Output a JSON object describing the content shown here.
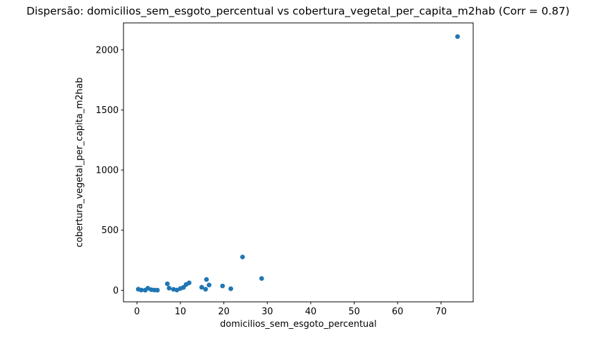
{
  "chart_data": {
    "type": "scatter",
    "title": "Dispersão: domicilios_sem_esgoto_percentual vs cobertura_vegetal_per_capita_m2hab (Corr = 0.87)",
    "correlation": 0.87,
    "xlabel": "domicilios_sem_esgoto_percentual",
    "ylabel": "cobertura_vegetal_per_capita_m2hab",
    "xlim": [
      -3.1,
      77.4
    ],
    "ylim": [
      -96,
      2224
    ],
    "x_ticks": [
      0,
      10,
      20,
      30,
      40,
      50,
      60,
      70
    ],
    "y_ticks": [
      0,
      500,
      1000,
      1500,
      2000
    ],
    "grid": false,
    "marker_color": "#1f77b4",
    "axis_color": "#000000",
    "points": [
      [
        0.3,
        9
      ],
      [
        1.0,
        2
      ],
      [
        1.9,
        1
      ],
      [
        2.5,
        17
      ],
      [
        3.3,
        5
      ],
      [
        4.0,
        2
      ],
      [
        4.7,
        1
      ],
      [
        7.0,
        54
      ],
      [
        7.4,
        18
      ],
      [
        8.4,
        8
      ],
      [
        9.2,
        2
      ],
      [
        10.0,
        15
      ],
      [
        10.7,
        24
      ],
      [
        11.3,
        48
      ],
      [
        12.0,
        62
      ],
      [
        14.9,
        25
      ],
      [
        15.8,
        9
      ],
      [
        16.0,
        90
      ],
      [
        16.6,
        44
      ],
      [
        19.7,
        36
      ],
      [
        21.6,
        13
      ],
      [
        24.3,
        277
      ],
      [
        28.7,
        98
      ],
      [
        73.8,
        2110
      ]
    ]
  }
}
